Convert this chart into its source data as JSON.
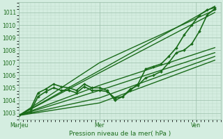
{
  "title": "Pression niveau de la mer( hPa )",
  "ylabel_ticks": [
    1003,
    1004,
    1005,
    1006,
    1007,
    1008,
    1009,
    1010,
    1011
  ],
  "ylim": [
    1002.5,
    1011.8
  ],
  "bg_color": "#d4ede0",
  "grid_color_major": "#9bbfaa",
  "grid_color_minor": "#b8d8c5",
  "line_color": "#1a6b1a",
  "tick_label_color": "#1a6b1a",
  "title_color": "#1a6b1a",
  "xtick_positions": [
    0,
    0.42,
    0.92
  ],
  "xtick_labels": [
    "MarJeu",
    "Mer",
    "Ven"
  ],
  "xlim": [
    0,
    1.05
  ],
  "lines": [
    {
      "x": [
        0.0,
        0.06,
        0.1,
        0.14,
        0.18,
        0.22,
        0.26,
        0.3,
        0.34,
        0.38,
        0.42,
        0.46,
        0.5,
        0.54,
        0.58,
        0.62,
        0.66,
        0.7,
        0.74,
        0.78,
        0.82,
        0.86,
        0.9,
        0.94,
        0.98,
        1.02
      ],
      "y": [
        1002.8,
        1003.3,
        1004.6,
        1004.9,
        1005.3,
        1005.1,
        1005.0,
        1004.8,
        1005.3,
        1005.0,
        1005.0,
        1004.8,
        1004.0,
        1004.3,
        1004.8,
        1005.3,
        1006.5,
        1006.7,
        1006.9,
        1007.5,
        1008.2,
        1009.2,
        1010.0,
        1010.8,
        1011.2,
        1011.4
      ],
      "marker": "D",
      "markersize": 2.0,
      "lw": 1.2
    },
    {
      "x": [
        0.0,
        0.06,
        0.1,
        0.14,
        0.18,
        0.22,
        0.26,
        0.3,
        0.34,
        0.38,
        0.42,
        0.46,
        0.5,
        0.54,
        0.58,
        0.62,
        0.66,
        0.7,
        0.74,
        0.78,
        0.82,
        0.86,
        0.9,
        0.94,
        0.98,
        1.02
      ],
      "y": [
        1002.8,
        1003.1,
        1004.3,
        1004.7,
        1005.0,
        1004.8,
        1004.8,
        1004.6,
        1005.1,
        1004.8,
        1004.8,
        1004.7,
        1004.2,
        1004.3,
        1004.9,
        1005.2,
        1005.8,
        1006.0,
        1006.3,
        1007.0,
        1007.8,
        1008.0,
        1008.5,
        1009.5,
        1010.8,
        1011.3
      ],
      "marker": "D",
      "markersize": 2.0,
      "lw": 1.2
    },
    {
      "x": [
        0.0,
        1.02
      ],
      "y": [
        1002.8,
        1011.5
      ],
      "marker": null,
      "markersize": 0,
      "lw": 1.0
    },
    {
      "x": [
        0.0,
        0.42,
        1.02
      ],
      "y": [
        1002.8,
        1007.0,
        1011.2
      ],
      "marker": null,
      "markersize": 0,
      "lw": 1.0
    },
    {
      "x": [
        0.0,
        0.42,
        1.02
      ],
      "y": [
        1002.8,
        1006.2,
        1011.0
      ],
      "marker": null,
      "markersize": 0,
      "lw": 1.0
    },
    {
      "x": [
        0.0,
        0.42,
        1.02
      ],
      "y": [
        1002.8,
        1005.2,
        1008.2
      ],
      "marker": null,
      "markersize": 0,
      "lw": 1.0
    },
    {
      "x": [
        0.0,
        0.42,
        1.02
      ],
      "y": [
        1002.8,
        1004.8,
        1007.8
      ],
      "marker": null,
      "markersize": 0,
      "lw": 1.0
    },
    {
      "x": [
        0.0,
        0.42,
        1.02
      ],
      "y": [
        1002.8,
        1004.2,
        1007.5
      ],
      "marker": null,
      "markersize": 0,
      "lw": 1.0
    },
    {
      "x": [
        0.0,
        0.42,
        1.02
      ],
      "y": [
        1002.8,
        1003.8,
        1007.2
      ],
      "marker": null,
      "markersize": 0,
      "lw": 1.0
    }
  ]
}
